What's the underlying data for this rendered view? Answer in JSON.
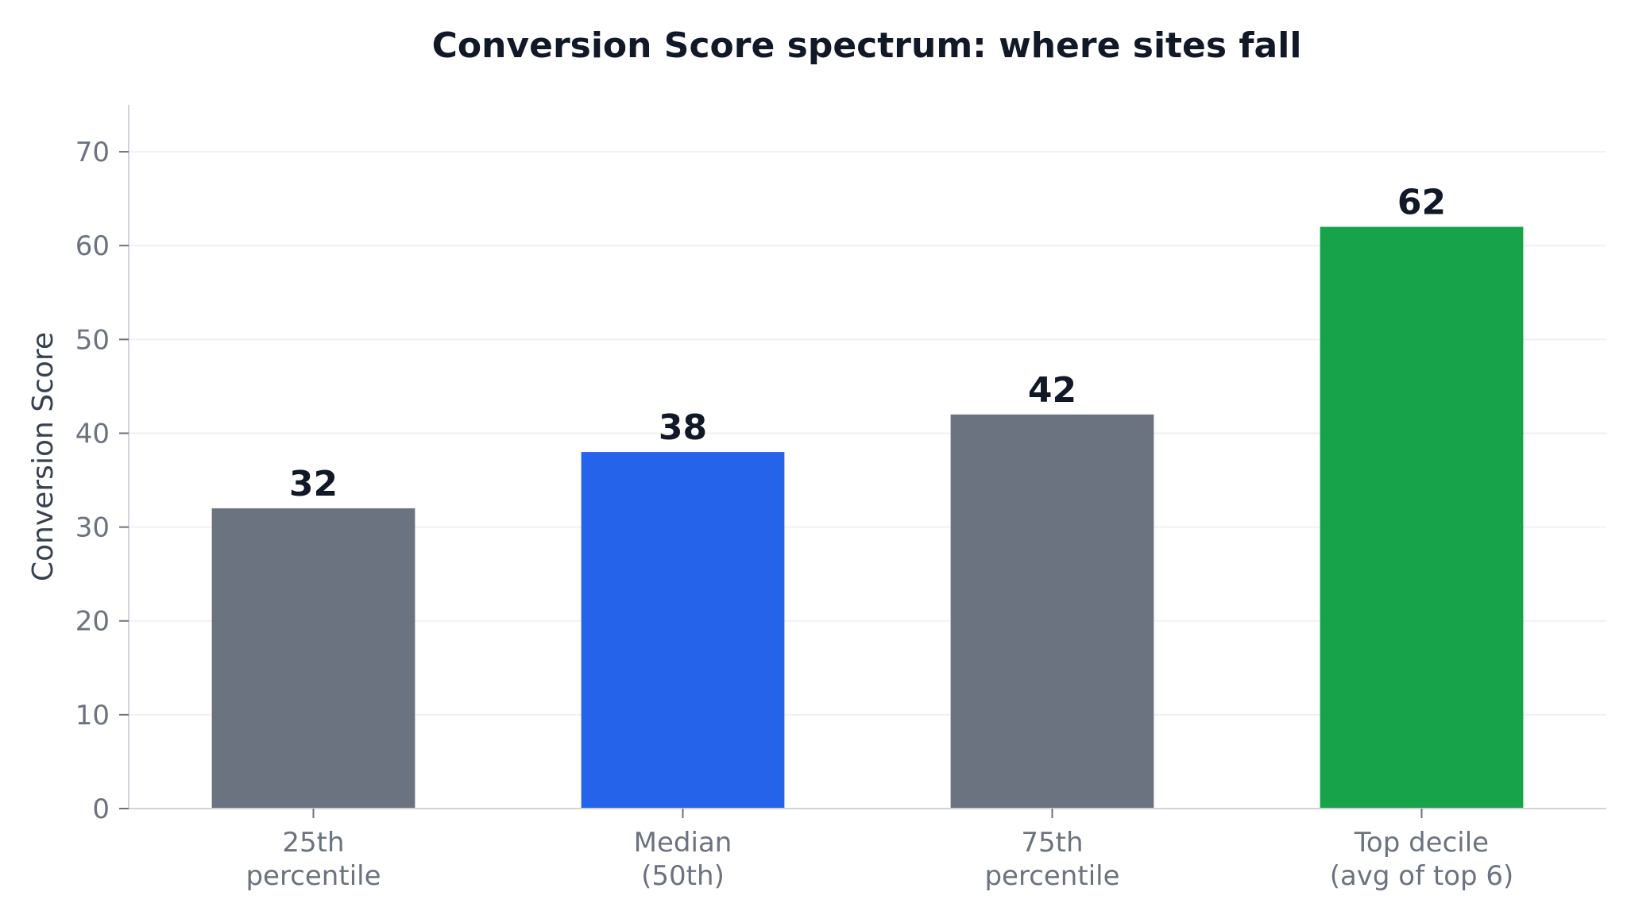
{
  "chart_data": {
    "type": "bar",
    "title": "Conversion Score spectrum: where sites fall",
    "xlabel": "",
    "ylabel": "Conversion Score",
    "categories": [
      [
        "25th",
        "percentile"
      ],
      [
        "Median",
        "(50th)"
      ],
      [
        "75th",
        "percentile"
      ],
      [
        "Top decile",
        "(avg of top 6)"
      ]
    ],
    "values": [
      32,
      38,
      42,
      62
    ],
    "value_labels": [
      "32",
      "38",
      "42",
      "62"
    ],
    "bar_colors": [
      "#6b7280",
      "#2563eb",
      "#6b7280",
      "#16a34a"
    ],
    "ylim": [
      0,
      75
    ],
    "yticks": [
      0,
      10,
      20,
      30,
      40,
      50,
      60,
      70
    ],
    "grid": true,
    "legend": "none"
  }
}
